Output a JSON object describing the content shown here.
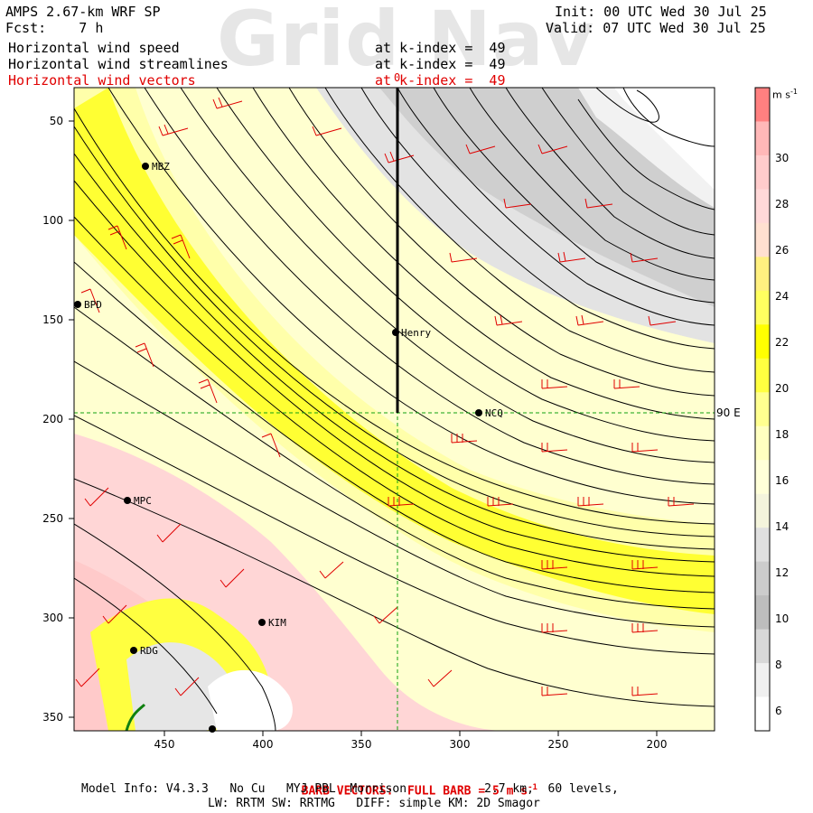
{
  "header": {
    "model": "AMPS 2.67-km WRF SP",
    "forecast": "Fcst:    7 h",
    "init": "Init: 00 UTC Wed 30 Jul 25",
    "valid": "Valid: 07 UTC Wed 30 Jul 25",
    "watermark": "Grid Nav",
    "fields": [
      {
        "name": "Horizontal wind speed",
        "level": "at k-index =  49",
        "color": "#000000"
      },
      {
        "name": "Horizontal wind streamlines",
        "level": "at k-index =  49",
        "color": "#000000"
      },
      {
        "name": "Horizontal wind vectors",
        "level": "at k-index =  49",
        "color": "#e00000"
      }
    ]
  },
  "map": {
    "x_ticks": [
      "450",
      "400",
      "350",
      "300",
      "250",
      "200"
    ],
    "y_ticks": [
      "50",
      "100",
      "150",
      "200",
      "250",
      "300",
      "350"
    ],
    "meridian_label": "90 E",
    "marker_label": "0",
    "stations": [
      {
        "id": "MBZ",
        "label": "MBZ"
      },
      {
        "id": "BPD",
        "label": "BPD"
      },
      {
        "id": "Henry",
        "label": "Henry"
      },
      {
        "id": "NCQ",
        "label": "NCQ"
      },
      {
        "id": "MPC",
        "label": "MPC"
      },
      {
        "id": "KIM",
        "label": "KIM"
      },
      {
        "id": "RDG",
        "label": "RDG"
      }
    ]
  },
  "colorbar": {
    "units": "m s",
    "units_exp": "-1",
    "labels": [
      "30",
      "28",
      "26",
      "24",
      "22",
      "20",
      "18",
      "16",
      "14",
      "12",
      "10",
      "8",
      "6"
    ],
    "colors": [
      "#ff8080",
      "#ffb8b8",
      "#ffcccc",
      "#ffd8d8",
      "#ffe0d0",
      "#fff080",
      "#ffff60",
      "#ffff00",
      "#ffff40",
      "#ffff90",
      "#ffffc0",
      "#ffffd8",
      "#f4f4dc",
      "#e0e0e0",
      "#cccccc",
      "#bdbdbd",
      "#d8d8d8",
      "#f0f0f0",
      "#ffffff"
    ]
  },
  "footer": {
    "barb": "BARB VECTORS:  FULL BARB = 5 m s",
    "barb_exp": "-1",
    "model_info": "Model Info: V4.3.3   No Cu   MYJ PBL  Morrison           2.7 km,  60 levels,",
    "physics": "LW: RRTM SW: RRTMG   DIFF: simple KM: 2D Smagor"
  }
}
